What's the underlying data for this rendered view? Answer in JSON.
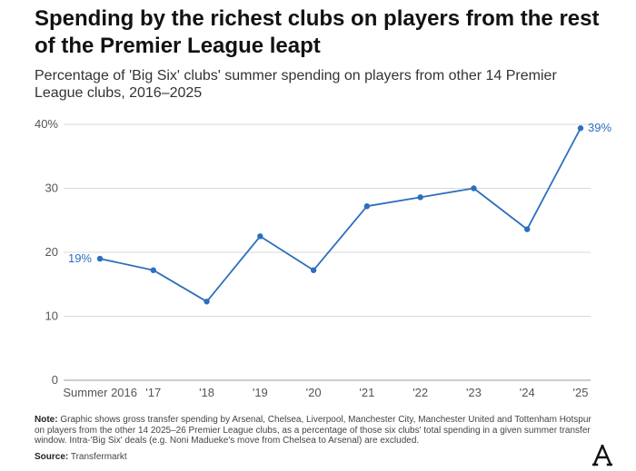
{
  "title": "Spending by the richest clubs on players from the rest of the Premier League leapt",
  "subtitle": "Percentage of 'Big Six' clubs' summer spending on players from other 14 Premier League clubs, 2016–2025",
  "note_label": "Note:",
  "note_text": "Graphic shows gross transfer spending by Arsenal, Chelsea, Liverpool, Manchester City, Manchester United and Tottenham Hotspur on players from the other 14 2025–26 Premier League clubs, as a percentage of those six clubs' total spending in a given summer transfer window. Intra-'Big Six' deals (e.g. Noni Madueke's move from Chelsea to Arsenal) are excluded.",
  "source_label": "Source:",
  "source_text": "Transfermarkt",
  "logo_text": "A",
  "colors": {
    "line": "#2c6fbd",
    "grid": "#d9d9d9",
    "baseline": "#999999"
  },
  "chart_data": {
    "type": "line",
    "title": "",
    "xlabel": "",
    "ylabel": "",
    "ylim": [
      0,
      40
    ],
    "yticks": [
      0,
      10,
      20,
      30,
      40
    ],
    "ytick_labels": [
      "0",
      "10",
      "20",
      "30",
      "40%"
    ],
    "categories": [
      "Summer 2016",
      "'17",
      "'18",
      "'19",
      "'20",
      "'21",
      "'22",
      "'23",
      "'24",
      "'25"
    ],
    "series": [
      {
        "values": [
          19,
          17.2,
          12.3,
          22.5,
          17.2,
          27.2,
          28.6,
          30,
          23.6,
          39.4
        ]
      }
    ],
    "annotations": [
      {
        "index": 0,
        "text": "19%",
        "side": "left"
      },
      {
        "index": 9,
        "text": "39%",
        "side": "right"
      }
    ],
    "grid": true,
    "legend": "none"
  }
}
